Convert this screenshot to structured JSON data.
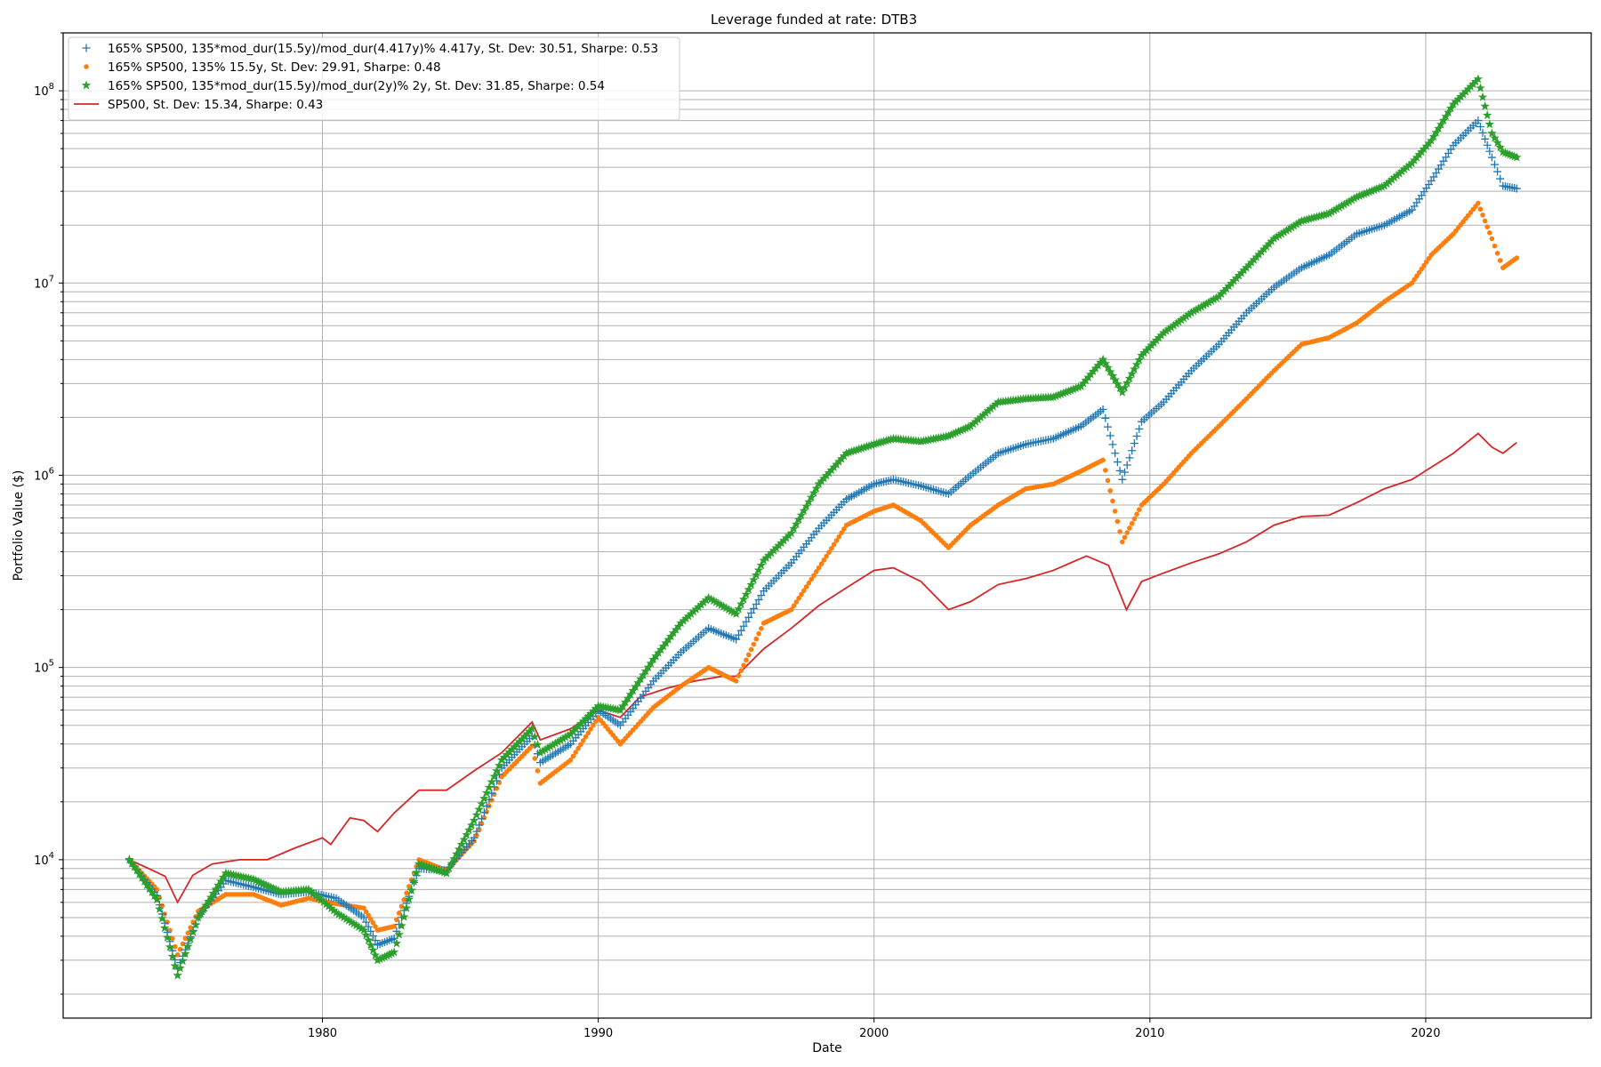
{
  "chart_data": {
    "type": "scatter",
    "title": "Leverage funded at rate: DTB3",
    "xlabel": "Date",
    "ylabel": "Portfolio Value ($)",
    "x_ticks": [
      1980,
      1990,
      2000,
      2010,
      2020
    ],
    "xlim": [
      1970.6,
      2026.0
    ],
    "y_scale": "log",
    "ylim": [
      1500,
      200000000
    ],
    "y_ticks": [
      {
        "base": "10",
        "exp": "4",
        "value": 10000
      },
      {
        "base": "10",
        "exp": "5",
        "value": 100000
      },
      {
        "base": "10",
        "exp": "6",
        "value": 1000000
      },
      {
        "base": "10",
        "exp": "7",
        "value": 10000000
      },
      {
        "base": "10",
        "exp": "8",
        "value": 100000000
      }
    ],
    "grid": "major and minor",
    "legend_position": "top-left",
    "series": [
      {
        "name": "165% SP500, 135*mod_dur(15.5y)/mod_dur(4.417y)% 4.417y, St. Dev: 30.51, Sharpe: 0.53",
        "marker": "plus",
        "color": "#1f77b4",
        "x": [
          1973.0,
          1974.0,
          1974.75,
          1975.5,
          1976.5,
          1977.5,
          1978.5,
          1979.5,
          1980.5,
          1981.5,
          1982.0,
          1982.6,
          1983.5,
          1984.5,
          1985.5,
          1986.5,
          1987.6,
          1987.9,
          1989.0,
          1990.0,
          1990.8,
          1992.0,
          1993.0,
          1994.0,
          1995.0,
          1996.0,
          1997.0,
          1998.0,
          1999.0,
          2000.0,
          2000.7,
          2001.7,
          2002.7,
          2003.5,
          2004.5,
          2005.5,
          2006.5,
          2007.5,
          2008.3,
          2009.0,
          2009.7,
          2010.5,
          2011.5,
          2012.5,
          2013.5,
          2014.5,
          2015.5,
          2016.5,
          2017.5,
          2018.5,
          2019.5,
          2020.2,
          2021.0,
          2021.9,
          2022.4,
          2022.8,
          2023.3
        ],
        "y": [
          10000,
          6500,
          2700,
          5000,
          7800,
          7200,
          6600,
          6800,
          6300,
          5000,
          3600,
          3900,
          9000,
          8800,
          13000,
          30000,
          44000,
          32000,
          40000,
          60000,
          50000,
          85000,
          120000,
          160000,
          140000,
          250000,
          350000,
          530000,
          750000,
          900000,
          950000,
          880000,
          800000,
          1000000,
          1300000,
          1450000,
          1550000,
          1800000,
          2200000,
          950000,
          1900000,
          2400000,
          3500000,
          4800000,
          7000000,
          9500000,
          12000000,
          14000000,
          18000000,
          20000000,
          24000000,
          34000000,
          52000000,
          70000000,
          45000000,
          32000000,
          31000000
        ]
      },
      {
        "name": "165% SP500, 135% 15.5y, St. Dev: 29.91, Sharpe: 0.48",
        "marker": "dot",
        "color": "#ff7f0e",
        "x": [
          1973.0,
          1974.0,
          1974.75,
          1975.5,
          1976.5,
          1977.5,
          1978.5,
          1979.5,
          1980.5,
          1981.5,
          1982.0,
          1982.6,
          1983.5,
          1984.5,
          1985.5,
          1986.5,
          1987.6,
          1987.9,
          1989.0,
          1990.0,
          1990.8,
          1992.0,
          1993.0,
          1994.0,
          1995.0,
          1996.0,
          1997.0,
          1998.0,
          1999.0,
          2000.0,
          2000.7,
          2001.7,
          2002.7,
          2003.5,
          2004.5,
          2005.5,
          2006.5,
          2007.5,
          2008.3,
          2009.0,
          2009.7,
          2010.5,
          2011.5,
          2012.5,
          2013.5,
          2014.5,
          2015.5,
          2016.5,
          2017.5,
          2018.5,
          2019.5,
          2020.2,
          2021.0,
          2021.9,
          2022.4,
          2022.8,
          2023.3
        ],
        "y": [
          10000,
          7000,
          3200,
          5400,
          6600,
          6600,
          5800,
          6300,
          5900,
          5600,
          4300,
          4500,
          10000,
          8800,
          12500,
          27000,
          39000,
          25000,
          33000,
          55000,
          40000,
          62000,
          80000,
          100000,
          85000,
          170000,
          200000,
          330000,
          550000,
          650000,
          700000,
          580000,
          420000,
          550000,
          700000,
          850000,
          900000,
          1050000,
          1200000,
          450000,
          700000,
          900000,
          1300000,
          1800000,
          2500000,
          3500000,
          4800000,
          5200000,
          6200000,
          8000000,
          10000000,
          14000000,
          18000000,
          26000000,
          17000000,
          12000000,
          13500000
        ]
      },
      {
        "name": "165% SP500, 135*mod_dur(15.5y)/mod_dur(2y)% 2y, St. Dev: 31.85, Sharpe: 0.54",
        "marker": "star",
        "color": "#2ca02c",
        "x": [
          1973.0,
          1974.0,
          1974.75,
          1975.5,
          1976.5,
          1977.5,
          1978.5,
          1979.5,
          1980.5,
          1981.5,
          1982.0,
          1982.6,
          1983.5,
          1984.5,
          1985.5,
          1986.5,
          1987.6,
          1987.9,
          1989.0,
          1990.0,
          1990.8,
          1992.0,
          1993.0,
          1994.0,
          1995.0,
          1996.0,
          1997.0,
          1998.0,
          1999.0,
          2000.0,
          2000.7,
          2001.7,
          2002.7,
          2003.5,
          2004.5,
          2005.5,
          2006.5,
          2007.5,
          2008.3,
          2009.0,
          2009.7,
          2010.5,
          2011.5,
          2012.5,
          2013.5,
          2014.5,
          2015.5,
          2016.5,
          2017.5,
          2018.5,
          2019.5,
          2020.2,
          2021.0,
          2021.9,
          2022.4,
          2022.8,
          2023.3
        ],
        "y": [
          10000,
          6200,
          2500,
          5000,
          8500,
          7900,
          6800,
          7000,
          5300,
          4300,
          3000,
          3300,
          9500,
          8500,
          16000,
          33000,
          48000,
          36000,
          45000,
          63000,
          60000,
          110000,
          170000,
          230000,
          190000,
          360000,
          500000,
          900000,
          1300000,
          1450000,
          1550000,
          1500000,
          1600000,
          1800000,
          2400000,
          2500000,
          2550000,
          2900000,
          4000000,
          2700000,
          4200000,
          5500000,
          7000000,
          8500000,
          12000000,
          17000000,
          21000000,
          23000000,
          28000000,
          32000000,
          42000000,
          55000000,
          85000000,
          115000000,
          60000000,
          48000000,
          45000000
        ]
      },
      {
        "name": "SP500, St. Dev: 15.34, Sharpe: 0.43",
        "marker": "line",
        "color": "#d62728",
        "x": [
          1973.0,
          1973.7,
          1974.3,
          1974.75,
          1975.3,
          1976.0,
          1977.0,
          1978.0,
          1979.0,
          1980.0,
          1980.3,
          1981.0,
          1981.5,
          1982.0,
          1982.6,
          1983.5,
          1984.5,
          1985.5,
          1986.5,
          1987.6,
          1987.9,
          1989.0,
          1990.0,
          1990.8,
          1991.5,
          1992.5,
          1993.5,
          1994.5,
          1995.0,
          1996.0,
          1997.0,
          1998.0,
          1999.0,
          2000.0,
          2000.7,
          2001.7,
          2002.7,
          2003.5,
          2004.5,
          2005.5,
          2006.5,
          2007.7,
          2008.5,
          2009.15,
          2009.7,
          2010.5,
          2011.5,
          2012.5,
          2013.5,
          2014.5,
          2015.5,
          2016.5,
          2017.5,
          2018.5,
          2019.5,
          2020.2,
          2021.0,
          2021.9,
          2022.4,
          2022.8,
          2023.3
        ],
        "y": [
          10000,
          9000,
          8200,
          6000,
          8300,
          9500,
          10000,
          10000,
          11500,
          13000,
          12000,
          16500,
          16000,
          14000,
          17500,
          23000,
          23000,
          29000,
          36000,
          52000,
          42000,
          48000,
          60000,
          55000,
          70000,
          78000,
          85000,
          90000,
          90000,
          125000,
          160000,
          210000,
          260000,
          320000,
          330000,
          280000,
          200000,
          220000,
          270000,
          290000,
          320000,
          380000,
          340000,
          200000,
          280000,
          310000,
          350000,
          390000,
          450000,
          550000,
          610000,
          620000,
          720000,
          850000,
          950000,
          1100000,
          1300000,
          1650000,
          1400000,
          1300000,
          1480000
        ]
      }
    ]
  }
}
